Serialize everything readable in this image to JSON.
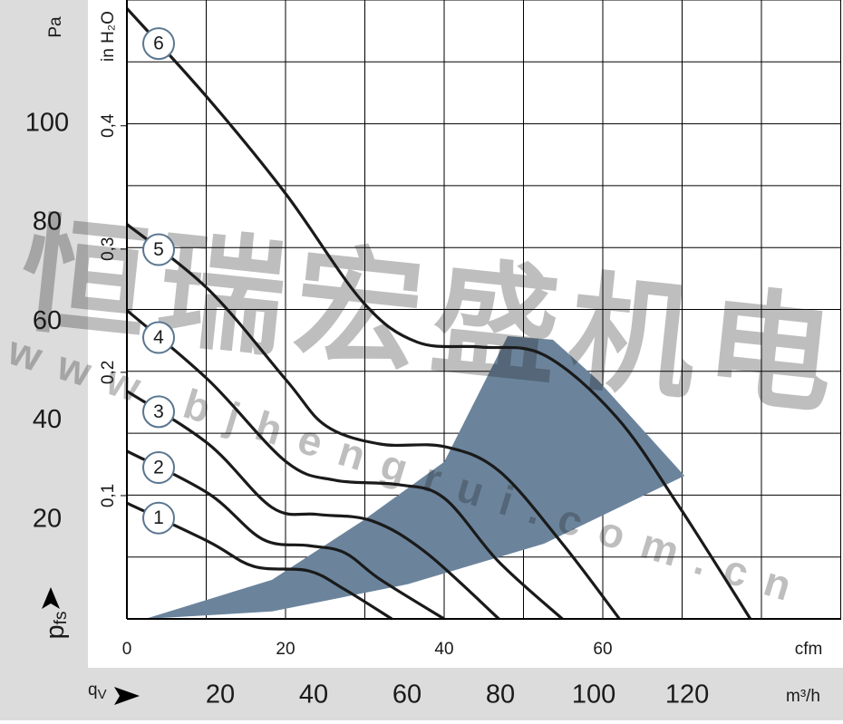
{
  "chart_data": {
    "type": "line",
    "y_label": "Pa",
    "y_symbol": "p",
    "y_subscript": "fs",
    "x_label": "cfm",
    "x2_symbol": "q",
    "x2_subscript": "V",
    "x2_label": "m³/h",
    "y2_label": "in H₂O",
    "xlim": [
      0,
      90
    ],
    "xticks": [
      0,
      20,
      40,
      60
    ],
    "xgrid": [
      0,
      10,
      20,
      30,
      40,
      50,
      60,
      70,
      80,
      90
    ],
    "ylim": [
      0,
      125
    ],
    "yticks": [
      20,
      40,
      60,
      80,
      100
    ],
    "ygrid": [
      0,
      12.5,
      25,
      37.5,
      50,
      62.5,
      75,
      87.5,
      100,
      112.5,
      125
    ],
    "x2lim": [
      0,
      152.9
    ],
    "x2ticks": [
      20,
      40,
      60,
      80,
      100,
      120
    ],
    "y2lim": [
      0,
      0.502
    ],
    "y2ticks": [
      {
        "value": 0.1,
        "label": "0,1"
      },
      {
        "value": 0.2,
        "label": "0,2"
      },
      {
        "value": 0.3,
        "label": "0,3"
      },
      {
        "value": 0.4,
        "label": "0,4"
      }
    ],
    "grid": true,
    "series": [
      {
        "name": "1",
        "color": "#1a1a1a",
        "x": [
          0,
          10.3,
          16,
          22.9,
          27.4,
          33.4
        ],
        "values": [
          23.4,
          15.6,
          10.6,
          9.7,
          6,
          0
        ]
      },
      {
        "name": "2",
        "color": "#1a1a1a",
        "x": [
          0,
          10.3,
          17.1,
          22.9,
          27.4,
          32,
          40
        ],
        "values": [
          33.9,
          25.3,
          16.1,
          14.8,
          13.4,
          7.9,
          0
        ]
      },
      {
        "name": "3",
        "color": "#1a1a1a",
        "x": [
          0,
          10.3,
          18.3,
          24,
          30.9,
          37.7,
          46.9
        ],
        "values": [
          46,
          35.3,
          22.5,
          21.1,
          19.8,
          13.4,
          0
        ]
      },
      {
        "name": "4",
        "color": "#1a1a1a",
        "x": [
          0,
          10.3,
          20.1,
          26.3,
          34.3,
          40,
          46.9,
          54.9
        ],
        "values": [
          62.3,
          48.2,
          31.7,
          28,
          27.1,
          24.4,
          11.5,
          0
        ]
      },
      {
        "name": "5",
        "color": "#1a1a1a",
        "x": [
          0,
          10.3,
          20.1,
          25.1,
          32,
          40,
          46.9,
          54.9,
          62.1
        ],
        "values": [
          79.7,
          66.5,
          48.2,
          39,
          35.3,
          34.8,
          29.9,
          15.2,
          0
        ]
      },
      {
        "name": "6",
        "color": "#1a1a1a",
        "x": [
          0,
          10.3,
          20.1,
          29.7,
          36.6,
          44.6,
          52.6,
          61.7,
          69.7,
          78.6
        ],
        "values": [
          123.3,
          105,
          85.7,
          64.1,
          55.9,
          54.9,
          53.3,
          40.8,
          22.5,
          0
        ]
      }
    ],
    "operating_range": {
      "color": "#6b849c",
      "x": [
        2.3,
        18.3,
        29.7,
        40,
        48,
        53.7,
        59.4,
        70.3,
        52.6,
        35.4,
        18.3
      ],
      "y": [
        0,
        7.9,
        19.8,
        31.7,
        57.1,
        56.4,
        48.2,
        28.9,
        15.2,
        7,
        1.5
      ]
    },
    "watermark": [
      "恒瑞宏盛机电",
      "www.bjhengrui.com.cn"
    ]
  }
}
